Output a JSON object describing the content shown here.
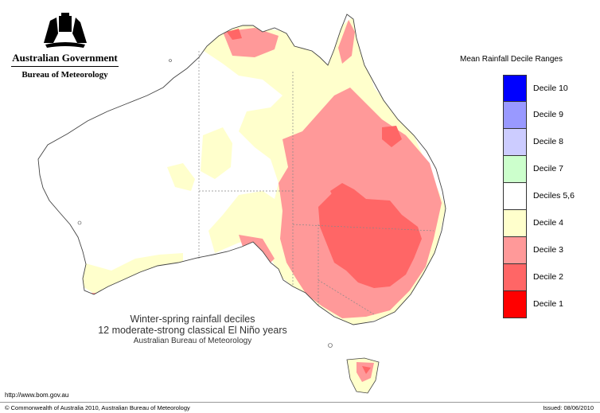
{
  "header": {
    "government": "Australian Government",
    "bureau": "Bureau of Meteorology"
  },
  "legend": {
    "title": "Mean Rainfall Decile Ranges",
    "items": [
      {
        "label": "Decile 10",
        "color": "#0000ff"
      },
      {
        "label": "Decile 9",
        "color": "#9999ff"
      },
      {
        "label": "Decile 8",
        "color": "#ccccff"
      },
      {
        "label": "Decile 7",
        "color": "#ccffcc"
      },
      {
        "label": "Deciles 5,6",
        "color": "#ffffff"
      },
      {
        "label": "Decile 4",
        "color": "#ffffcc"
      },
      {
        "label": "Decile 3",
        "color": "#ff9999"
      },
      {
        "label": "Decile 2",
        "color": "#ff6666"
      },
      {
        "label": "Decile 1",
        "color": "#ff0000"
      }
    ]
  },
  "caption": {
    "line1": "Winter-spring rainfall deciles",
    "line2": "12 moderate-strong classical El Niño years",
    "line3": "Australian Bureau of Meteorology"
  },
  "footer": {
    "url": "http://www.bom.gov.au",
    "copyright": "© Commonwealth of Australia 2010, Australian Bureau of Meteorology",
    "issued": "Issued: 08/06/2010"
  }
}
